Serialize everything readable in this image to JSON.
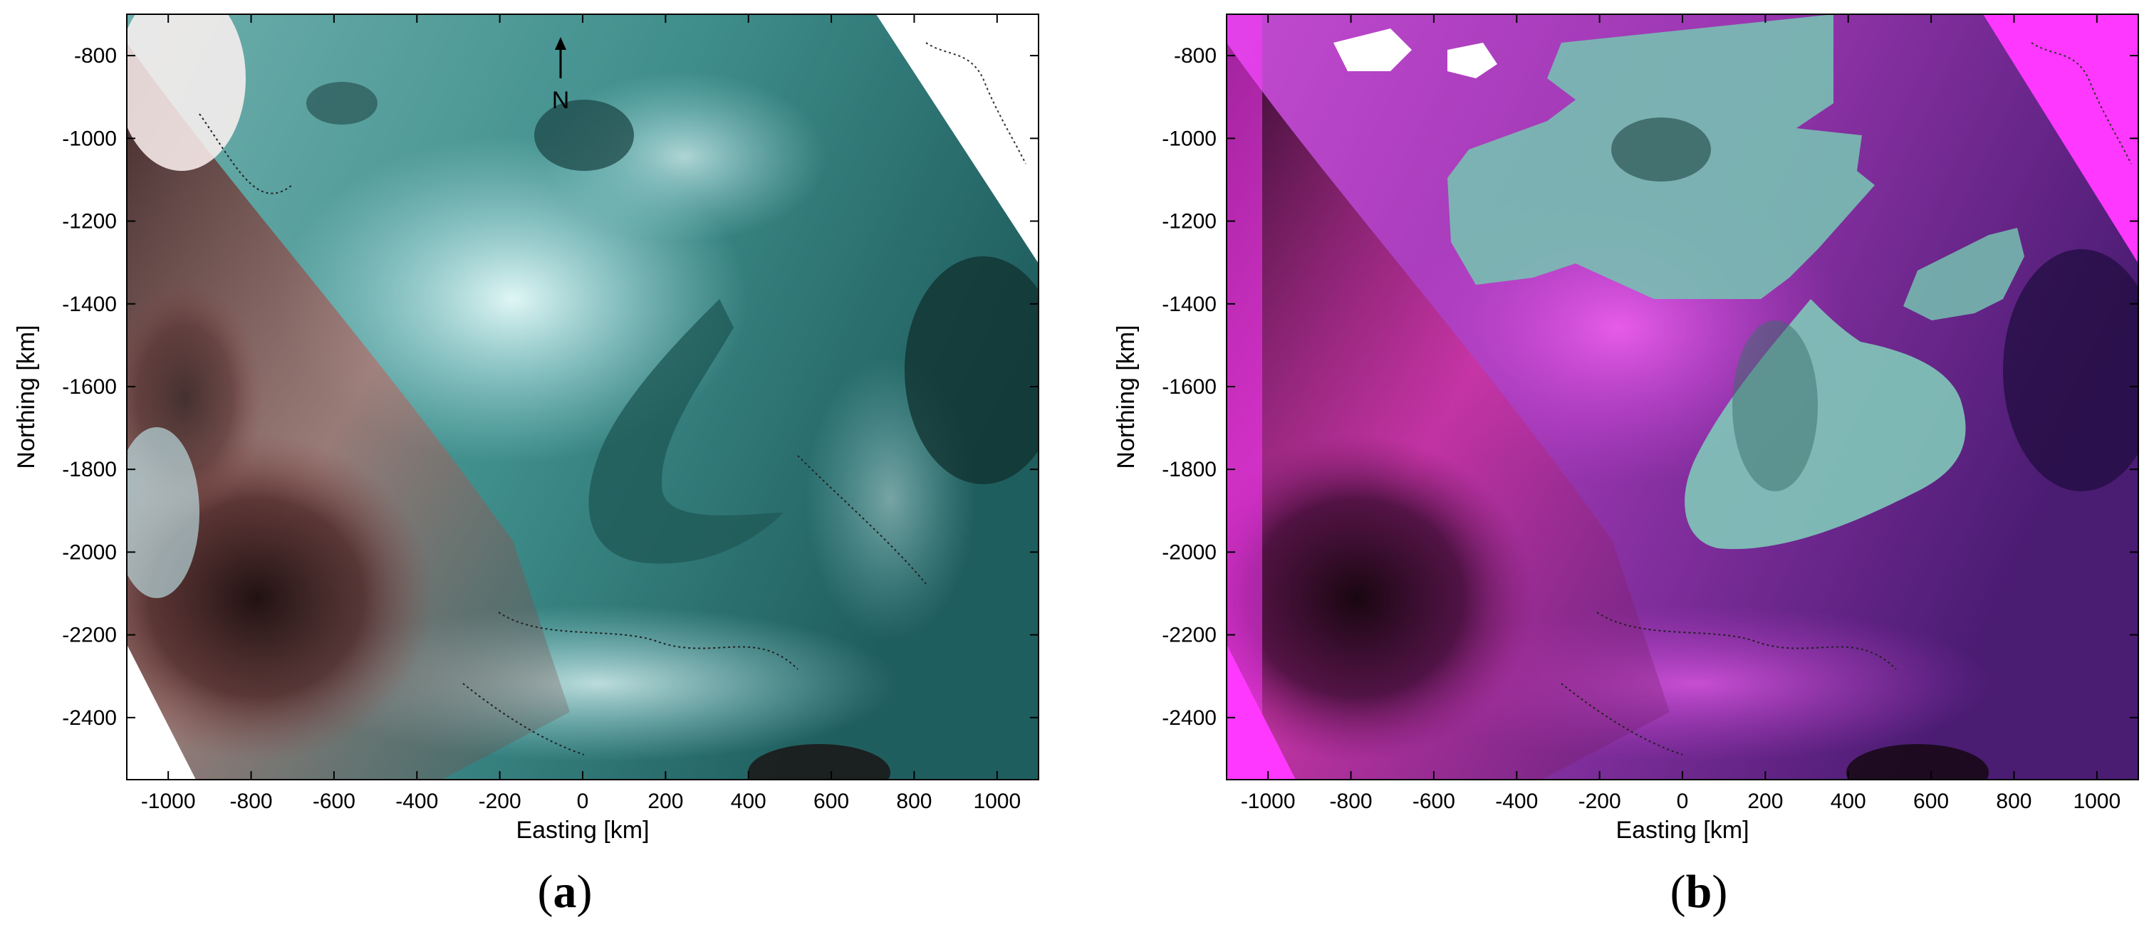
{
  "colors": {
    "panel_a_base": "#3c8a88",
    "panel_a_ice": "#bfe8ea",
    "panel_a_cloud": "#2a1414",
    "panel_b_base": "#9a2ea6",
    "panel_b_mask": "#ff38ff",
    "panel_b_ice": "#7ec2b8",
    "axis": "#000000"
  },
  "axes": {
    "xlabel": "Easting [km]",
    "ylabel": "Northing [km]",
    "xticks": [
      "-1000",
      "-800",
      "-600",
      "-400",
      "-200",
      "0",
      "200",
      "400",
      "600",
      "800",
      "1000"
    ],
    "yticks": [
      "-800",
      "-1000",
      "-1200",
      "-1400",
      "-1600",
      "-1800",
      "-2000",
      "-2200",
      "-2400"
    ]
  },
  "north_arrow": {
    "label": "N"
  },
  "panels": [
    {
      "id": "a",
      "label": "a"
    },
    {
      "id": "b",
      "label": "b"
    }
  ]
}
